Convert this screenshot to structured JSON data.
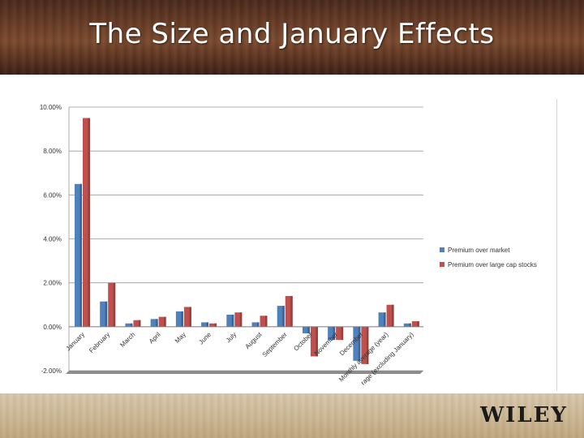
{
  "slide": {
    "title": "The Size and January Effects",
    "logo": "WILEY"
  },
  "chart_data": {
    "type": "bar",
    "title": "",
    "xlabel": "",
    "ylabel": "",
    "ylim": [
      -0.02,
      0.1
    ],
    "yticks": [
      -0.02,
      0.0,
      0.02,
      0.04,
      0.06,
      0.08,
      0.1
    ],
    "ytick_labels": [
      "-2.00%",
      "0.00%",
      "2.00%",
      "4.00%",
      "6.00%",
      "8.00%",
      "10.00%"
    ],
    "categories": [
      "January",
      "February",
      "March",
      "April",
      "May",
      "June",
      "July",
      "August",
      "September",
      "October",
      "November",
      "December",
      "Monthly average (year)",
      "Monthly average (excluding January)"
    ],
    "category_labels": [
      "January",
      "February",
      "March",
      "April",
      "May",
      "June",
      "July",
      "August",
      "September",
      "October",
      "November",
      "December",
      "Monthly average (year)",
      "rage (excluding January)"
    ],
    "series": [
      {
        "name": "Premium over market",
        "color": "#4f81bd",
        "values": [
          0.065,
          0.0115,
          0.0015,
          0.0035,
          0.007,
          0.002,
          0.0055,
          0.002,
          0.0095,
          -0.003,
          -0.006,
          -0.0155,
          0.0065,
          0.0015
        ]
      },
      {
        "name": "Premium over large cap stocks",
        "color": "#c0504d",
        "values": [
          0.095,
          0.02,
          0.003,
          0.0045,
          0.009,
          0.0015,
          0.0065,
          0.005,
          0.014,
          -0.0135,
          -0.006,
          -0.017,
          0.01,
          0.0025
        ]
      }
    ],
    "grid": true,
    "legend_position": "right"
  }
}
